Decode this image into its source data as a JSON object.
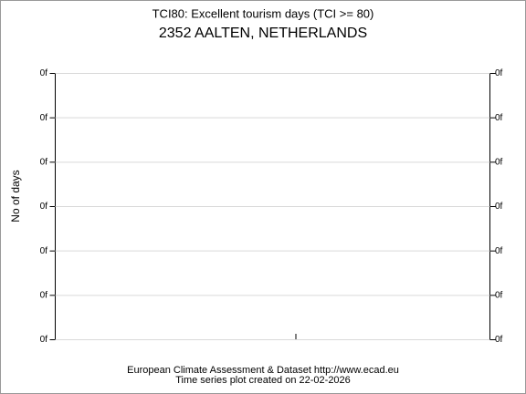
{
  "chart_data": {
    "type": "line",
    "title": "TCI80: Excellent tourism days (TCI >= 80)",
    "subtitle": "2352 AALTEN, NETHERLANDS",
    "ylabel": "No of days",
    "ylim": [
      0,
      6
    ],
    "yticks": [
      {
        "value": 0,
        "label": "0f"
      },
      {
        "value": 1,
        "label": "0f"
      },
      {
        "value": 2,
        "label": "0f"
      },
      {
        "value": 3,
        "label": "0f"
      },
      {
        "value": 4,
        "label": "0f"
      },
      {
        "value": 5,
        "label": "0f"
      },
      {
        "value": 6,
        "label": "0f"
      }
    ],
    "y2lim": [
      0,
      6
    ],
    "y2ticks": [
      {
        "value": 0,
        "label": "0f"
      },
      {
        "value": 1,
        "label": "0f"
      },
      {
        "value": 2,
        "label": "0f"
      },
      {
        "value": 3,
        "label": "0f"
      },
      {
        "value": 4,
        "label": "0f"
      },
      {
        "value": 5,
        "label": "0f"
      },
      {
        "value": 6,
        "label": "0f"
      }
    ],
    "grid": true,
    "footer": [
      "European Climate Assessment & Dataset  http://www.ecad.eu",
      "Time series plot created on 22-02-2026"
    ]
  }
}
